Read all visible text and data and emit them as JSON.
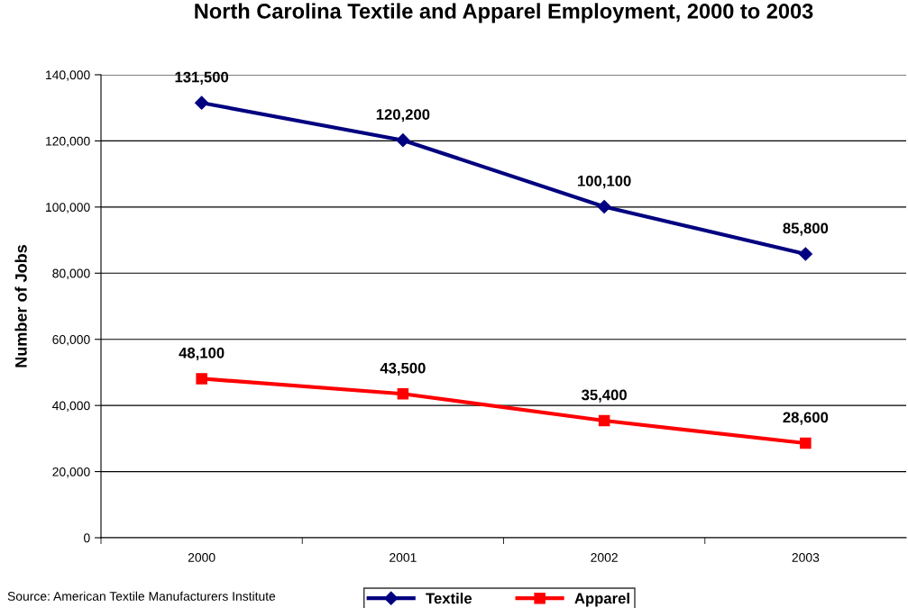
{
  "chart_data": {
    "type": "line",
    "title": "North Carolina Textile and Apparel Employment, 2000 to 2003",
    "ylabel": "Number of Jobs",
    "categories": [
      "2000",
      "2001",
      "2002",
      "2003"
    ],
    "series": [
      {
        "name": "Textile",
        "color": "#000080",
        "marker": "diamond",
        "values": [
          131500,
          120200,
          100100,
          85800
        ],
        "value_labels": [
          "131,500",
          "120,200",
          "100,100",
          "85,800"
        ]
      },
      {
        "name": "Apparel",
        "color": "#ff0000",
        "marker": "square",
        "values": [
          48100,
          43500,
          35400,
          28600
        ],
        "value_labels": [
          "48,100",
          "43,500",
          "35,400",
          "28,600"
        ]
      }
    ],
    "ylim": [
      0,
      140000
    ],
    "yticks": [
      {
        "value": 0,
        "label": "0"
      },
      {
        "value": 20000,
        "label": "20,000"
      },
      {
        "value": 40000,
        "label": "40,000"
      },
      {
        "value": 60000,
        "label": "60,000"
      },
      {
        "value": 80000,
        "label": "80,000"
      },
      {
        "value": 100000,
        "label": "100,000"
      },
      {
        "value": 120000,
        "label": "120,000"
      },
      {
        "value": 140000,
        "label": "140,000"
      }
    ],
    "grid": "y",
    "legend": "bottom",
    "line_style": "solid",
    "annotations": [
      "Source: American Textile Manufacturers Institute"
    ]
  }
}
